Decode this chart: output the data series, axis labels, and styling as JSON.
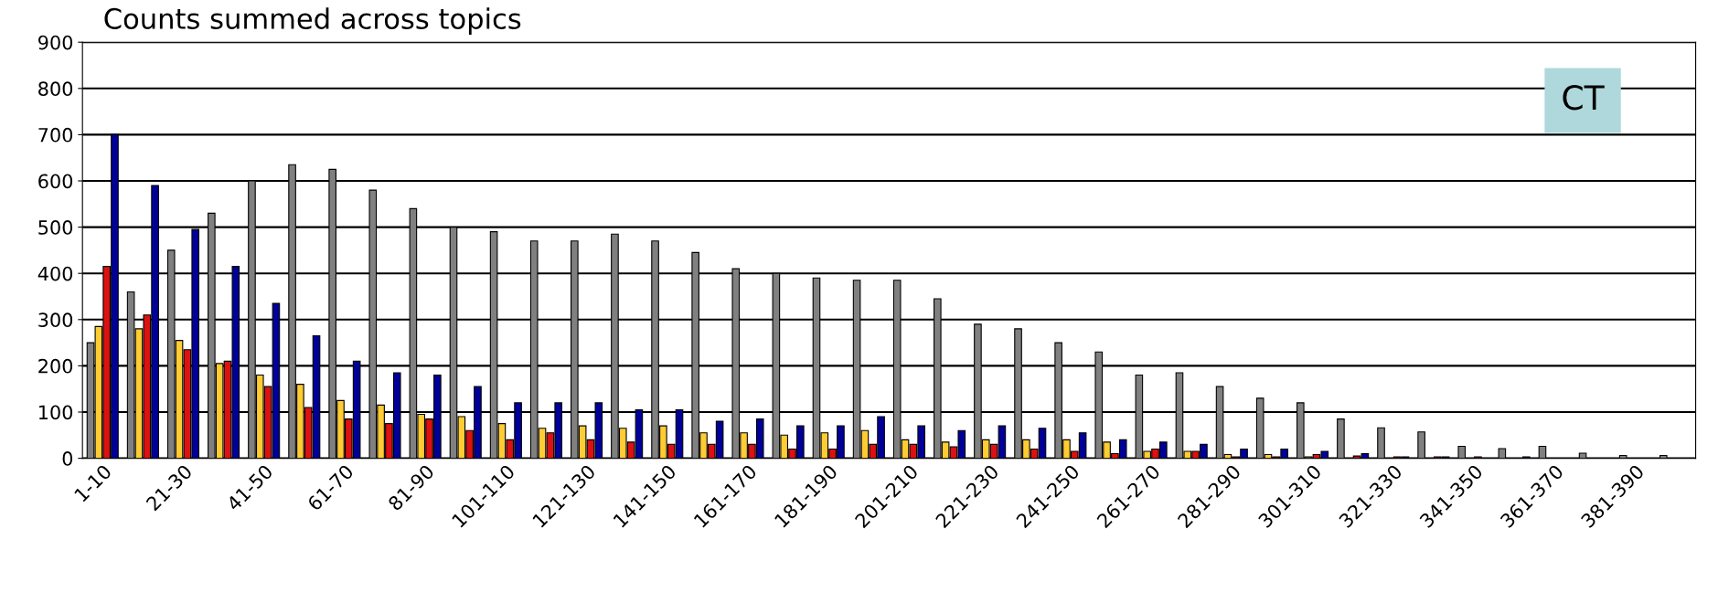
{
  "chart_data": {
    "type": "bar",
    "title": "Counts summed across topics",
    "categories": [
      "1-10",
      null,
      "21-30",
      null,
      "41-50",
      null,
      "61-70",
      null,
      "81-90",
      null,
      "101-110",
      null,
      "121-130",
      null,
      "141-150",
      null,
      "161-170",
      null,
      "181-190",
      null,
      "201-210",
      null,
      "221-230",
      null,
      "241-250",
      null,
      "261-270",
      null,
      "281-290",
      null,
      "301-310",
      null,
      "321-330",
      null,
      "341-350",
      null,
      "361-370",
      null,
      "381-390",
      null
    ],
    "series": [
      {
        "color": "#808080",
        "values": [
          250,
          360,
          450,
          530,
          600,
          635,
          625,
          580,
          540,
          500,
          490,
          470,
          470,
          485,
          470,
          445,
          410,
          400,
          390,
          385,
          385,
          345,
          290,
          280,
          250,
          230,
          180,
          185,
          155,
          130,
          120,
          85,
          66,
          57,
          26,
          21,
          26,
          11,
          6,
          6
        ]
      },
      {
        "color": "#ffcc33",
        "values": [
          285,
          280,
          255,
          205,
          180,
          160,
          125,
          115,
          95,
          90,
          75,
          65,
          70,
          65,
          70,
          55,
          55,
          50,
          55,
          60,
          40,
          35,
          40,
          40,
          40,
          35,
          15,
          15,
          8,
          8,
          3,
          0,
          0,
          0,
          0,
          0,
          0,
          0,
          0,
          0
        ]
      },
      {
        "color": "#dd1111",
        "values": [
          415,
          310,
          235,
          210,
          155,
          110,
          85,
          75,
          85,
          60,
          40,
          55,
          40,
          35,
          30,
          30,
          30,
          20,
          20,
          30,
          30,
          25,
          30,
          20,
          15,
          10,
          20,
          15,
          3,
          3,
          8,
          5,
          3,
          3,
          3,
          0,
          0,
          0,
          0,
          0
        ]
      },
      {
        "color": "#000099",
        "values": [
          700,
          590,
          495,
          415,
          335,
          265,
          210,
          185,
          180,
          155,
          120,
          120,
          120,
          105,
          105,
          80,
          85,
          70,
          70,
          90,
          70,
          60,
          70,
          65,
          55,
          40,
          35,
          30,
          20,
          20,
          15,
          10,
          3,
          3,
          0,
          3,
          0,
          0,
          0,
          0
        ]
      }
    ],
    "ylim": [
      0,
      900
    ],
    "yticks": [
      0,
      100,
      200,
      300,
      400,
      500,
      600,
      700,
      800,
      900
    ],
    "grid": "y",
    "legend": false,
    "annotations": [
      "CT"
    ]
  }
}
